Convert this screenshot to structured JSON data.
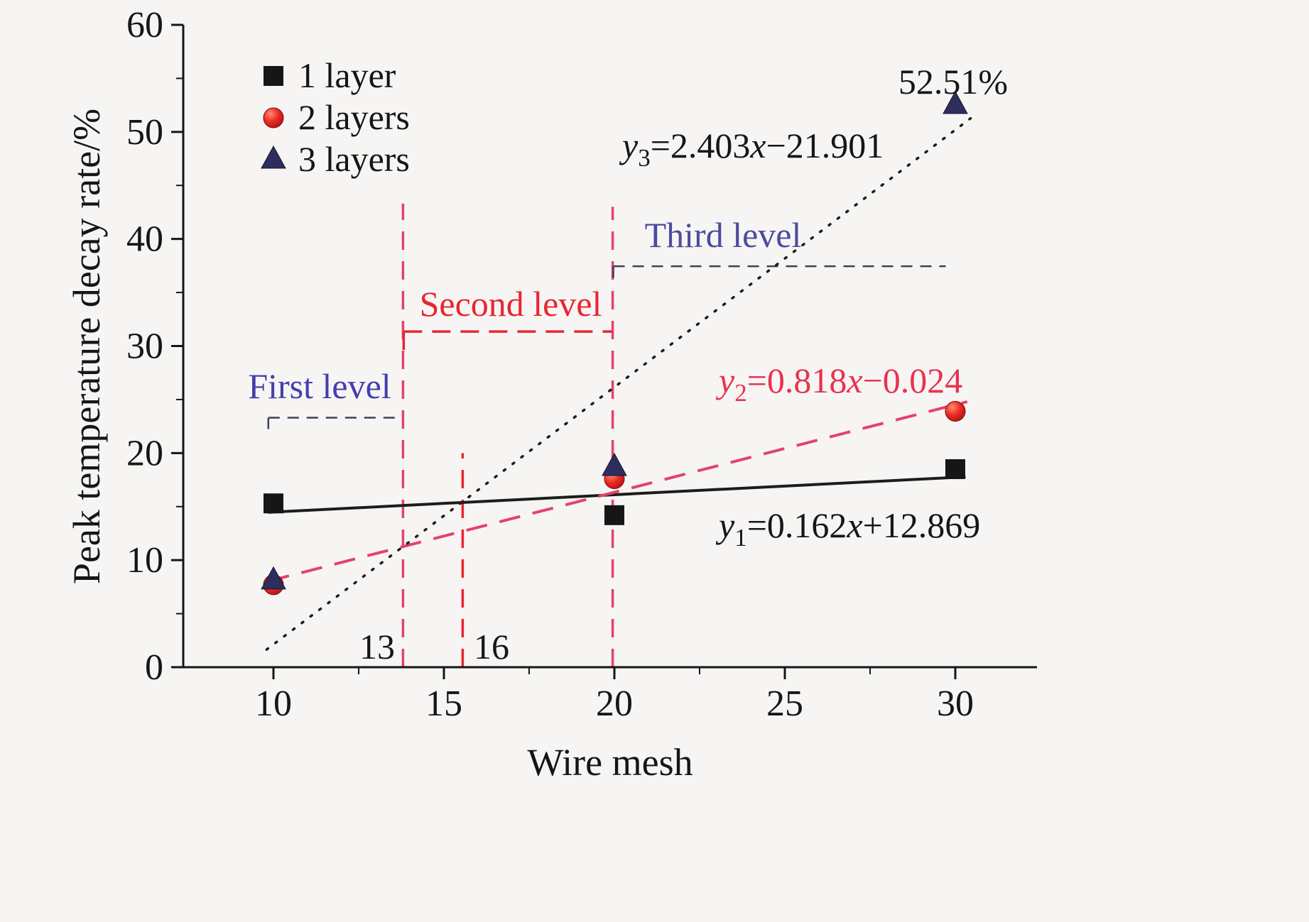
{
  "figure": {
    "background": "#f7f5f3",
    "xlabel": "Wire mesh",
    "ylabel": "Peak temperature decay rate/%"
  },
  "chart_data": {
    "type": "scatter",
    "xlabel": "Wire mesh",
    "ylabel": "Peak temperature decay rate/%",
    "xlim": [
      7.35,
      32.4
    ],
    "ylim": [
      0,
      60
    ],
    "x_ticks": [
      10,
      15,
      20,
      25,
      30
    ],
    "y_ticks": [
      0,
      10,
      20,
      30,
      40,
      50,
      60
    ],
    "x": [
      10,
      20,
      30
    ],
    "series": [
      {
        "name": "1 layer",
        "marker": "square",
        "color": "#161616",
        "values": [
          15.3,
          14.2,
          18.5
        ],
        "fit": {
          "slope": 0.162,
          "intercept": 12.869,
          "equation": "y1=0.162x+12.869",
          "equation_parts": {
            "lhs": "y",
            "sub": "1",
            "mid": "=0.162",
            "var": "x",
            "tail": "+12.869"
          },
          "line_style": "solid",
          "line_color": "#1c1c1c",
          "label_color": "#161616"
        }
      },
      {
        "name": "2 layers",
        "marker": "circle",
        "color": "#e42525",
        "values": [
          7.7,
          17.6,
          23.9
        ],
        "fit": {
          "slope": 0.818,
          "intercept": -0.024,
          "equation": "y2=0.818x−0.024",
          "equation_parts": {
            "lhs": "y",
            "sub": "2",
            "mid": "=0.818",
            "var": "x",
            "tail": "−0.024"
          },
          "line_style": "dashed",
          "line_color": "#e4426e",
          "label_color": "#e73350"
        }
      },
      {
        "name": "3 layers",
        "marker": "triangle",
        "color": "#2e2e5e",
        "values": [
          8.1,
          18.7,
          52.51
        ],
        "fit": {
          "slope": 2.403,
          "intercept": -21.901,
          "equation": "y3=2.403x−21.901",
          "equation_parts": {
            "lhs": "y",
            "sub": "3",
            "mid": "=2.403",
            "var": "x",
            "tail": "−21.901"
          },
          "line_style": "dotted",
          "line_color": "#1c1c1c",
          "label_color": "#161616"
        }
      }
    ],
    "annotations": {
      "point_label": {
        "text": "52.51%",
        "color": "#161616"
      },
      "levels": [
        {
          "label": "First level",
          "text_color": "#443fae",
          "line_color": "#3f3f5a",
          "y": 23.3,
          "x1": 9.85,
          "x2": 13.78
        },
        {
          "label": "Second level",
          "text_color": "#e82532",
          "line_color": "#e82532",
          "y": 31.35,
          "x1": 13.82,
          "x2": 19.93
        },
        {
          "label": "Third level",
          "text_color": "#4b4b9e",
          "line_color": "#3f3f5a",
          "y": 37.45,
          "x1": 19.97,
          "x2": 29.72
        }
      ],
      "guide_lines": [
        {
          "x": 13.8,
          "y_top": 43.3,
          "color": "#e4426e",
          "label": "13"
        },
        {
          "x": 15.55,
          "y_top": 20.0,
          "color": "#e82532",
          "label": "16"
        },
        {
          "x": 19.95,
          "y_top": 43.0,
          "color": "#e4426e",
          "label": ""
        }
      ]
    },
    "legend": {
      "position": "top-left",
      "items": [
        "1 layer",
        "2 layers",
        "3 layers"
      ]
    }
  }
}
